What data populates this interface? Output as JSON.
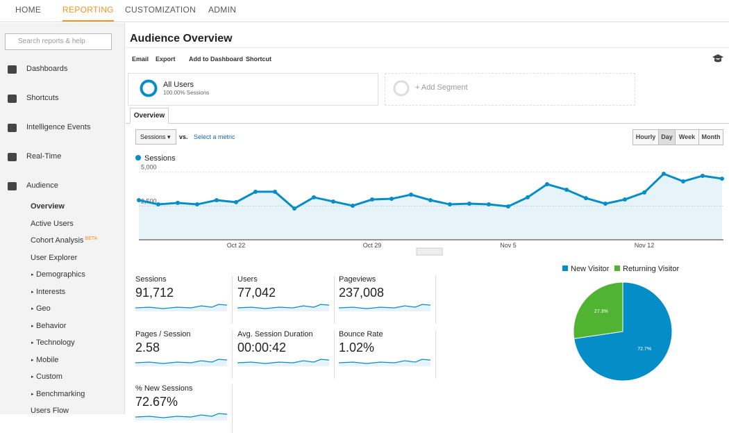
{
  "nav": {
    "tabs": [
      "HOME",
      "REPORTING",
      "CUSTOMIZATION",
      "ADMIN"
    ],
    "active": 1
  },
  "sidebar": {
    "search_placeholder": "Search reports & help",
    "sections": [
      "Dashboards",
      "Shortcuts",
      "Intelligence Events",
      "Real-Time",
      "Audience"
    ],
    "audience_items": [
      "Overview",
      "Active Users",
      "Cohort Analysis",
      "User Explorer",
      "Demographics",
      "Interests",
      "Geo",
      "Behavior",
      "Technology",
      "Mobile",
      "Custom",
      "Benchmarking",
      "Users Flow"
    ],
    "beta_badge": "BETA"
  },
  "header": {
    "title": "Audience Overview"
  },
  "toolbar": {
    "items": [
      "Email",
      "Export",
      "Add to Dashboard",
      "Shortcut"
    ]
  },
  "segments": {
    "name": "All Users",
    "detail": "100.00% Sessions",
    "add": "+ Add Segment"
  },
  "tab": "Overview",
  "metric_picker": {
    "metric": "Sessions",
    "vs": "vs.",
    "select": "Select a metric"
  },
  "granularity": {
    "options": [
      "Hourly",
      "Day",
      "Week",
      "Month"
    ],
    "active": 1
  },
  "metrics": [
    {
      "name": "Sessions",
      "value": "91,712"
    },
    {
      "name": "Users",
      "value": "77,042"
    },
    {
      "name": "Pageviews",
      "value": "237,008"
    },
    {
      "name": "Pages / Session",
      "value": "2.58"
    },
    {
      "name": "Avg. Session Duration",
      "value": "00:00:42"
    },
    {
      "name": "Bounce Rate",
      "value": "1.02%"
    },
    {
      "name": "% New Sessions",
      "value": "72.67%"
    }
  ],
  "chart_data": [
    {
      "type": "line",
      "categories": [
        null,
        null,
        null,
        null,
        null,
        "Oct 22",
        null,
        null,
        null,
        null,
        null,
        null,
        "Oct 29",
        null,
        null,
        null,
        null,
        null,
        null,
        "Nov 5",
        null,
        null,
        null,
        null,
        null,
        null,
        "Nov 12",
        null,
        null,
        null,
        null
      ],
      "series": [
        {
          "name": "Sessions",
          "color": "#058dc7",
          "values": [
            2930,
            2620,
            2730,
            2620,
            2930,
            2780,
            3550,
            3550,
            2310,
            3140,
            2830,
            2520,
            2980,
            3030,
            3340,
            2930,
            2620,
            2670,
            2620,
            2470,
            3140,
            4110,
            3700,
            3080,
            2670,
            2980,
            3500,
            4880,
            4320,
            4730,
            4520
          ]
        }
      ],
      "ylim": [
        0,
        5500
      ],
      "yticks": [
        {
          "value": 2500,
          "label": "2,500"
        },
        {
          "value": 5000,
          "label": "5,000"
        }
      ],
      "grid": true
    },
    {
      "type": "pie",
      "categories": [
        "New Visitor",
        "Returning Visitor"
      ],
      "values": [
        72.7,
        27.3
      ],
      "value_labels": [
        "72.7%",
        "27.3%"
      ],
      "colors": [
        "#058dc7",
        "#50b432"
      ]
    }
  ]
}
